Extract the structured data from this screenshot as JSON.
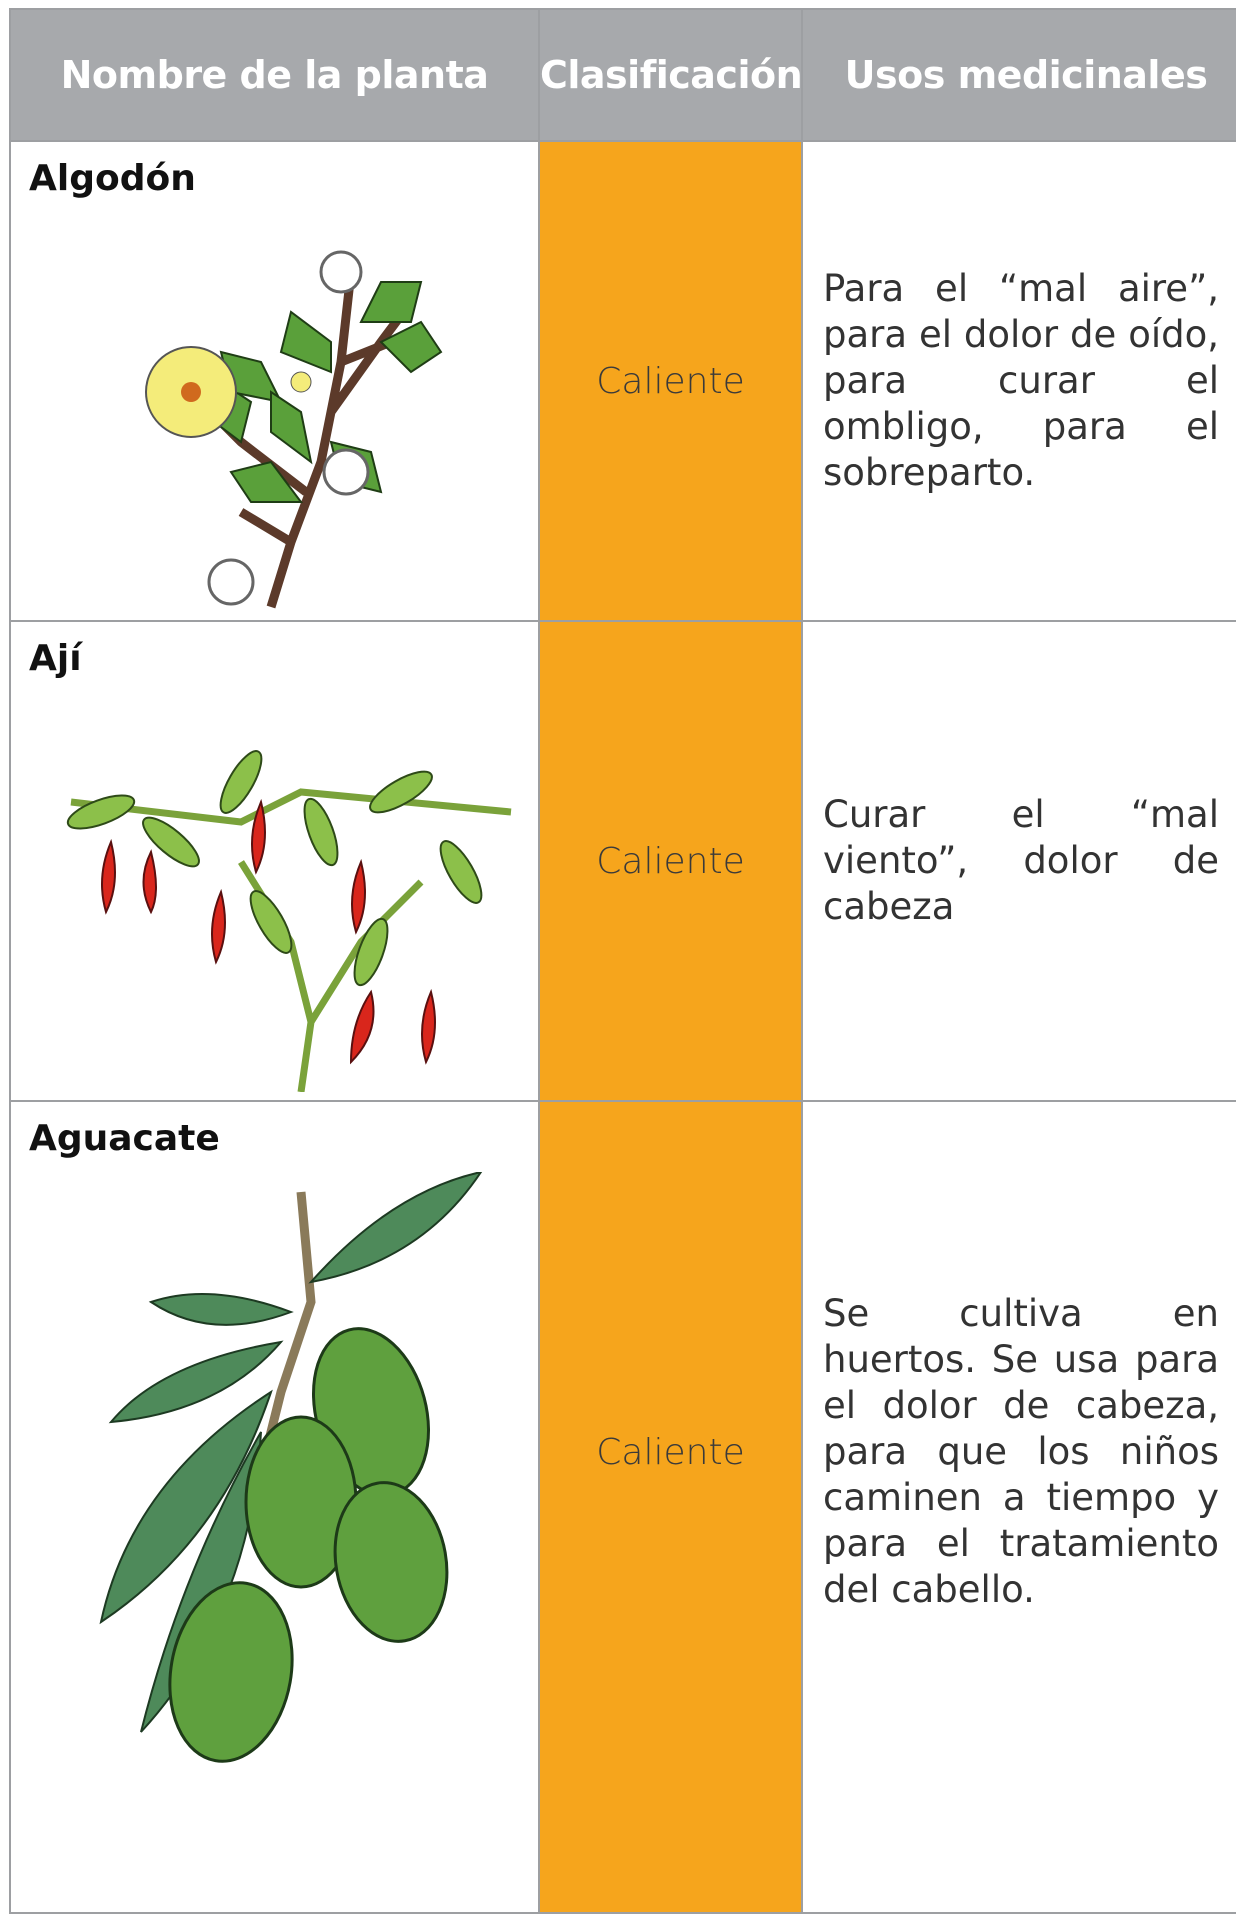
{
  "header": {
    "columns": [
      "Nombre de la planta",
      "Clasificación",
      "Usos medicinales"
    ]
  },
  "table": {
    "rows": [
      [
        "Algodón",
        "Caliente",
        "Para el “mal aire”, para el dolor de oído, para curar el ombligo, para el sobreparto."
      ],
      [
        "Ají",
        "Caliente",
        "Curar el “mal viento”, dolor de cabeza"
      ],
      [
        "Aguacate",
        "Caliente",
        "Se cultiva en huertos. Se usa para el dolor de cabeza, para que los niños caminen a tiempo y para el tratamiento del cabello."
      ]
    ]
  }
}
